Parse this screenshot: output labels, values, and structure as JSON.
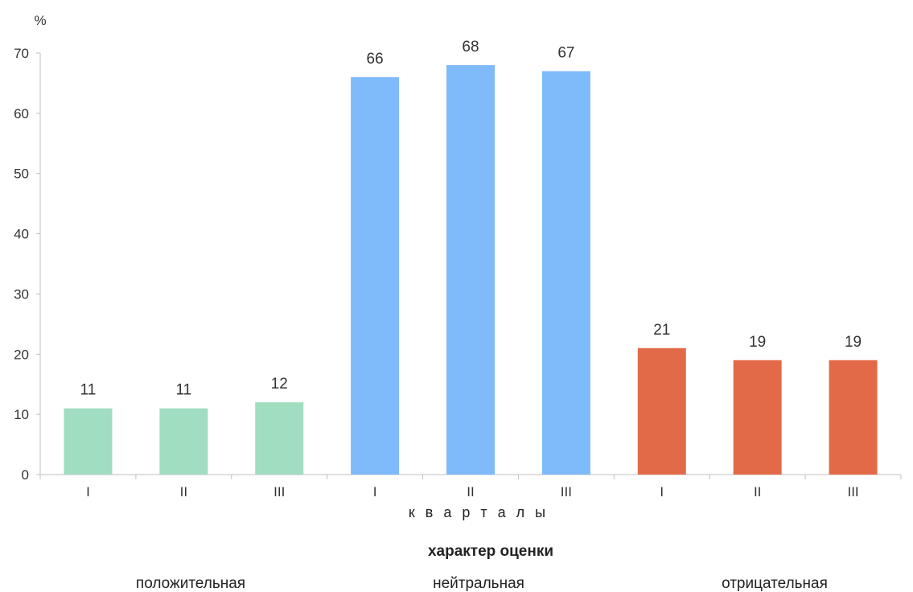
{
  "chart_data": {
    "type": "bar",
    "y_unit": "%",
    "ylim": [
      0,
      70
    ],
    "y_ticks": [
      0,
      10,
      20,
      30,
      40,
      50,
      60,
      70
    ],
    "xlabel": "к в а р т а л ы",
    "legend_title": "характер оценки",
    "groups": [
      {
        "name": "положительная",
        "color": "#a1ddc0",
        "categories": [
          "I",
          "II",
          "III"
        ],
        "values": [
          11,
          11,
          12
        ]
      },
      {
        "name": "нейтральная",
        "color": "#7fbafa",
        "categories": [
          "I",
          "II",
          "III"
        ],
        "values": [
          66,
          68,
          67
        ]
      },
      {
        "name": "отрицательная",
        "color": "#e36a48",
        "categories": [
          "I",
          "II",
          "III"
        ],
        "values": [
          21,
          19,
          19
        ]
      }
    ],
    "grid": false
  }
}
